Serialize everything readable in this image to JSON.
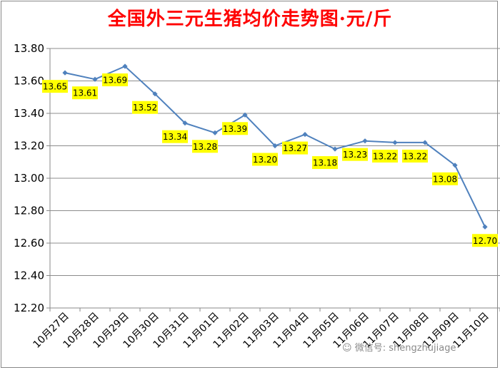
{
  "chart_data": {
    "type": "line",
    "title": "全国外三元生猪均价走势图·元/斤",
    "xlabel": "",
    "ylabel": "",
    "categories": [
      "10月27日",
      "10月28日",
      "10月29日",
      "10月30日",
      "10月31日",
      "11月01日",
      "11月02日",
      "11月03日",
      "11月04日",
      "11月05日",
      "11月06日",
      "11月07日",
      "11月08日",
      "11月09日",
      "11月10日"
    ],
    "series": [
      {
        "values": [
          13.65,
          13.61,
          13.69,
          13.52,
          13.34,
          13.28,
          13.39,
          13.2,
          13.27,
          13.18,
          13.23,
          13.22,
          13.22,
          13.08,
          12.7
        ]
      }
    ],
    "ylim": [
      12.2,
      13.8
    ],
    "yticks": [
      "12.20",
      "12.40",
      "12.60",
      "12.80",
      "13.00",
      "13.20",
      "13.40",
      "13.60",
      "13.80"
    ],
    "grid": true,
    "legend": "none",
    "line_color": "#4f81bd",
    "label_bg": "#ffff00"
  },
  "watermark": "微信号: shengzhujiage"
}
